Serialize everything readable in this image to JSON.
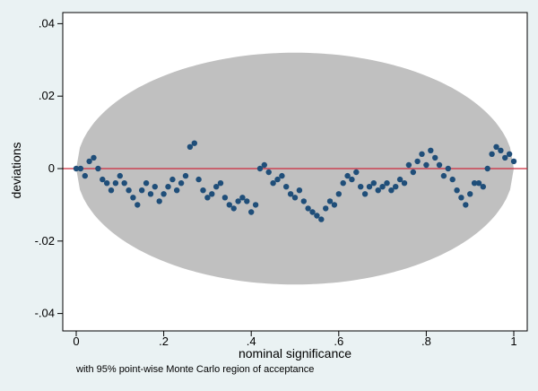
{
  "chart_data": {
    "type": "scatter",
    "title": "",
    "xlabel": "nominal significance",
    "ylabel": "deviations",
    "note": "with 95% point-wise Monte Carlo region of acceptance",
    "xlim": [
      0,
      1
    ],
    "ylim": [
      -0.04,
      0.04
    ],
    "x_ticks": [
      0,
      0.2,
      0.4,
      0.6,
      0.8,
      1
    ],
    "x_tick_labels": [
      "0",
      ".2",
      ".4",
      ".6",
      ".8",
      "1"
    ],
    "y_ticks": [
      -0.04,
      -0.02,
      0,
      0.02,
      0.04
    ],
    "y_tick_labels": [
      "-.04",
      "-.02",
      "0",
      ".02",
      ".04"
    ],
    "grid": false,
    "reference_line": {
      "y": 0,
      "color": "#cc2b3c"
    },
    "acceptance_region": {
      "x_range": [
        0,
        1
      ],
      "half_width_max": 0.032,
      "color": "#c0c0c0"
    },
    "series": [
      {
        "marker_color": "#1f4e79",
        "points": [
          [
            0.0,
            0.0
          ],
          [
            0.01,
            0.0
          ],
          [
            0.02,
            -0.002
          ],
          [
            0.03,
            0.002
          ],
          [
            0.04,
            0.003
          ],
          [
            0.05,
            0.0
          ],
          [
            0.06,
            -0.003
          ],
          [
            0.07,
            -0.004
          ],
          [
            0.08,
            -0.006
          ],
          [
            0.09,
            -0.004
          ],
          [
            0.1,
            -0.002
          ],
          [
            0.11,
            -0.004
          ],
          [
            0.12,
            -0.006
          ],
          [
            0.13,
            -0.008
          ],
          [
            0.14,
            -0.01
          ],
          [
            0.15,
            -0.006
          ],
          [
            0.16,
            -0.004
          ],
          [
            0.17,
            -0.007
          ],
          [
            0.18,
            -0.005
          ],
          [
            0.19,
            -0.009
          ],
          [
            0.2,
            -0.007
          ],
          [
            0.21,
            -0.005
          ],
          [
            0.22,
            -0.003
          ],
          [
            0.23,
            -0.006
          ],
          [
            0.24,
            -0.004
          ],
          [
            0.25,
            -0.002
          ],
          [
            0.26,
            0.006
          ],
          [
            0.27,
            0.007
          ],
          [
            0.28,
            -0.003
          ],
          [
            0.29,
            -0.006
          ],
          [
            0.3,
            -0.008
          ],
          [
            0.31,
            -0.007
          ],
          [
            0.32,
            -0.005
          ],
          [
            0.33,
            -0.004
          ],
          [
            0.34,
            -0.008
          ],
          [
            0.35,
            -0.01
          ],
          [
            0.36,
            -0.011
          ],
          [
            0.37,
            -0.009
          ],
          [
            0.38,
            -0.008
          ],
          [
            0.39,
            -0.009
          ],
          [
            0.4,
            -0.012
          ],
          [
            0.41,
            -0.01
          ],
          [
            0.42,
            0.0
          ],
          [
            0.43,
            0.001
          ],
          [
            0.44,
            -0.001
          ],
          [
            0.45,
            -0.004
          ],
          [
            0.46,
            -0.003
          ],
          [
            0.47,
            -0.002
          ],
          [
            0.48,
            -0.005
          ],
          [
            0.49,
            -0.007
          ],
          [
            0.5,
            -0.008
          ],
          [
            0.51,
            -0.006
          ],
          [
            0.52,
            -0.009
          ],
          [
            0.53,
            -0.011
          ],
          [
            0.54,
            -0.012
          ],
          [
            0.55,
            -0.013
          ],
          [
            0.56,
            -0.014
          ],
          [
            0.57,
            -0.011
          ],
          [
            0.58,
            -0.009
          ],
          [
            0.59,
            -0.01
          ],
          [
            0.6,
            -0.007
          ],
          [
            0.61,
            -0.004
          ],
          [
            0.62,
            -0.002
          ],
          [
            0.63,
            -0.003
          ],
          [
            0.64,
            -0.001
          ],
          [
            0.65,
            -0.005
          ],
          [
            0.66,
            -0.007
          ],
          [
            0.67,
            -0.005
          ],
          [
            0.68,
            -0.004
          ],
          [
            0.69,
            -0.006
          ],
          [
            0.7,
            -0.005
          ],
          [
            0.71,
            -0.004
          ],
          [
            0.72,
            -0.006
          ],
          [
            0.73,
            -0.005
          ],
          [
            0.74,
            -0.003
          ],
          [
            0.75,
            -0.004
          ],
          [
            0.76,
            0.001
          ],
          [
            0.77,
            -0.001
          ],
          [
            0.78,
            0.002
          ],
          [
            0.79,
            0.004
          ],
          [
            0.8,
            0.001
          ],
          [
            0.81,
            0.005
          ],
          [
            0.82,
            0.003
          ],
          [
            0.83,
            0.001
          ],
          [
            0.84,
            -0.002
          ],
          [
            0.85,
            0.0
          ],
          [
            0.86,
            -0.003
          ],
          [
            0.87,
            -0.006
          ],
          [
            0.88,
            -0.008
          ],
          [
            0.89,
            -0.01
          ],
          [
            0.9,
            -0.007
          ],
          [
            0.91,
            -0.004
          ],
          [
            0.92,
            -0.004
          ],
          [
            0.93,
            -0.005
          ],
          [
            0.94,
            0.0
          ],
          [
            0.95,
            0.004
          ],
          [
            0.96,
            0.006
          ],
          [
            0.97,
            0.005
          ],
          [
            0.98,
            0.003
          ],
          [
            0.99,
            0.004
          ],
          [
            1.0,
            0.002
          ]
        ]
      }
    ]
  }
}
